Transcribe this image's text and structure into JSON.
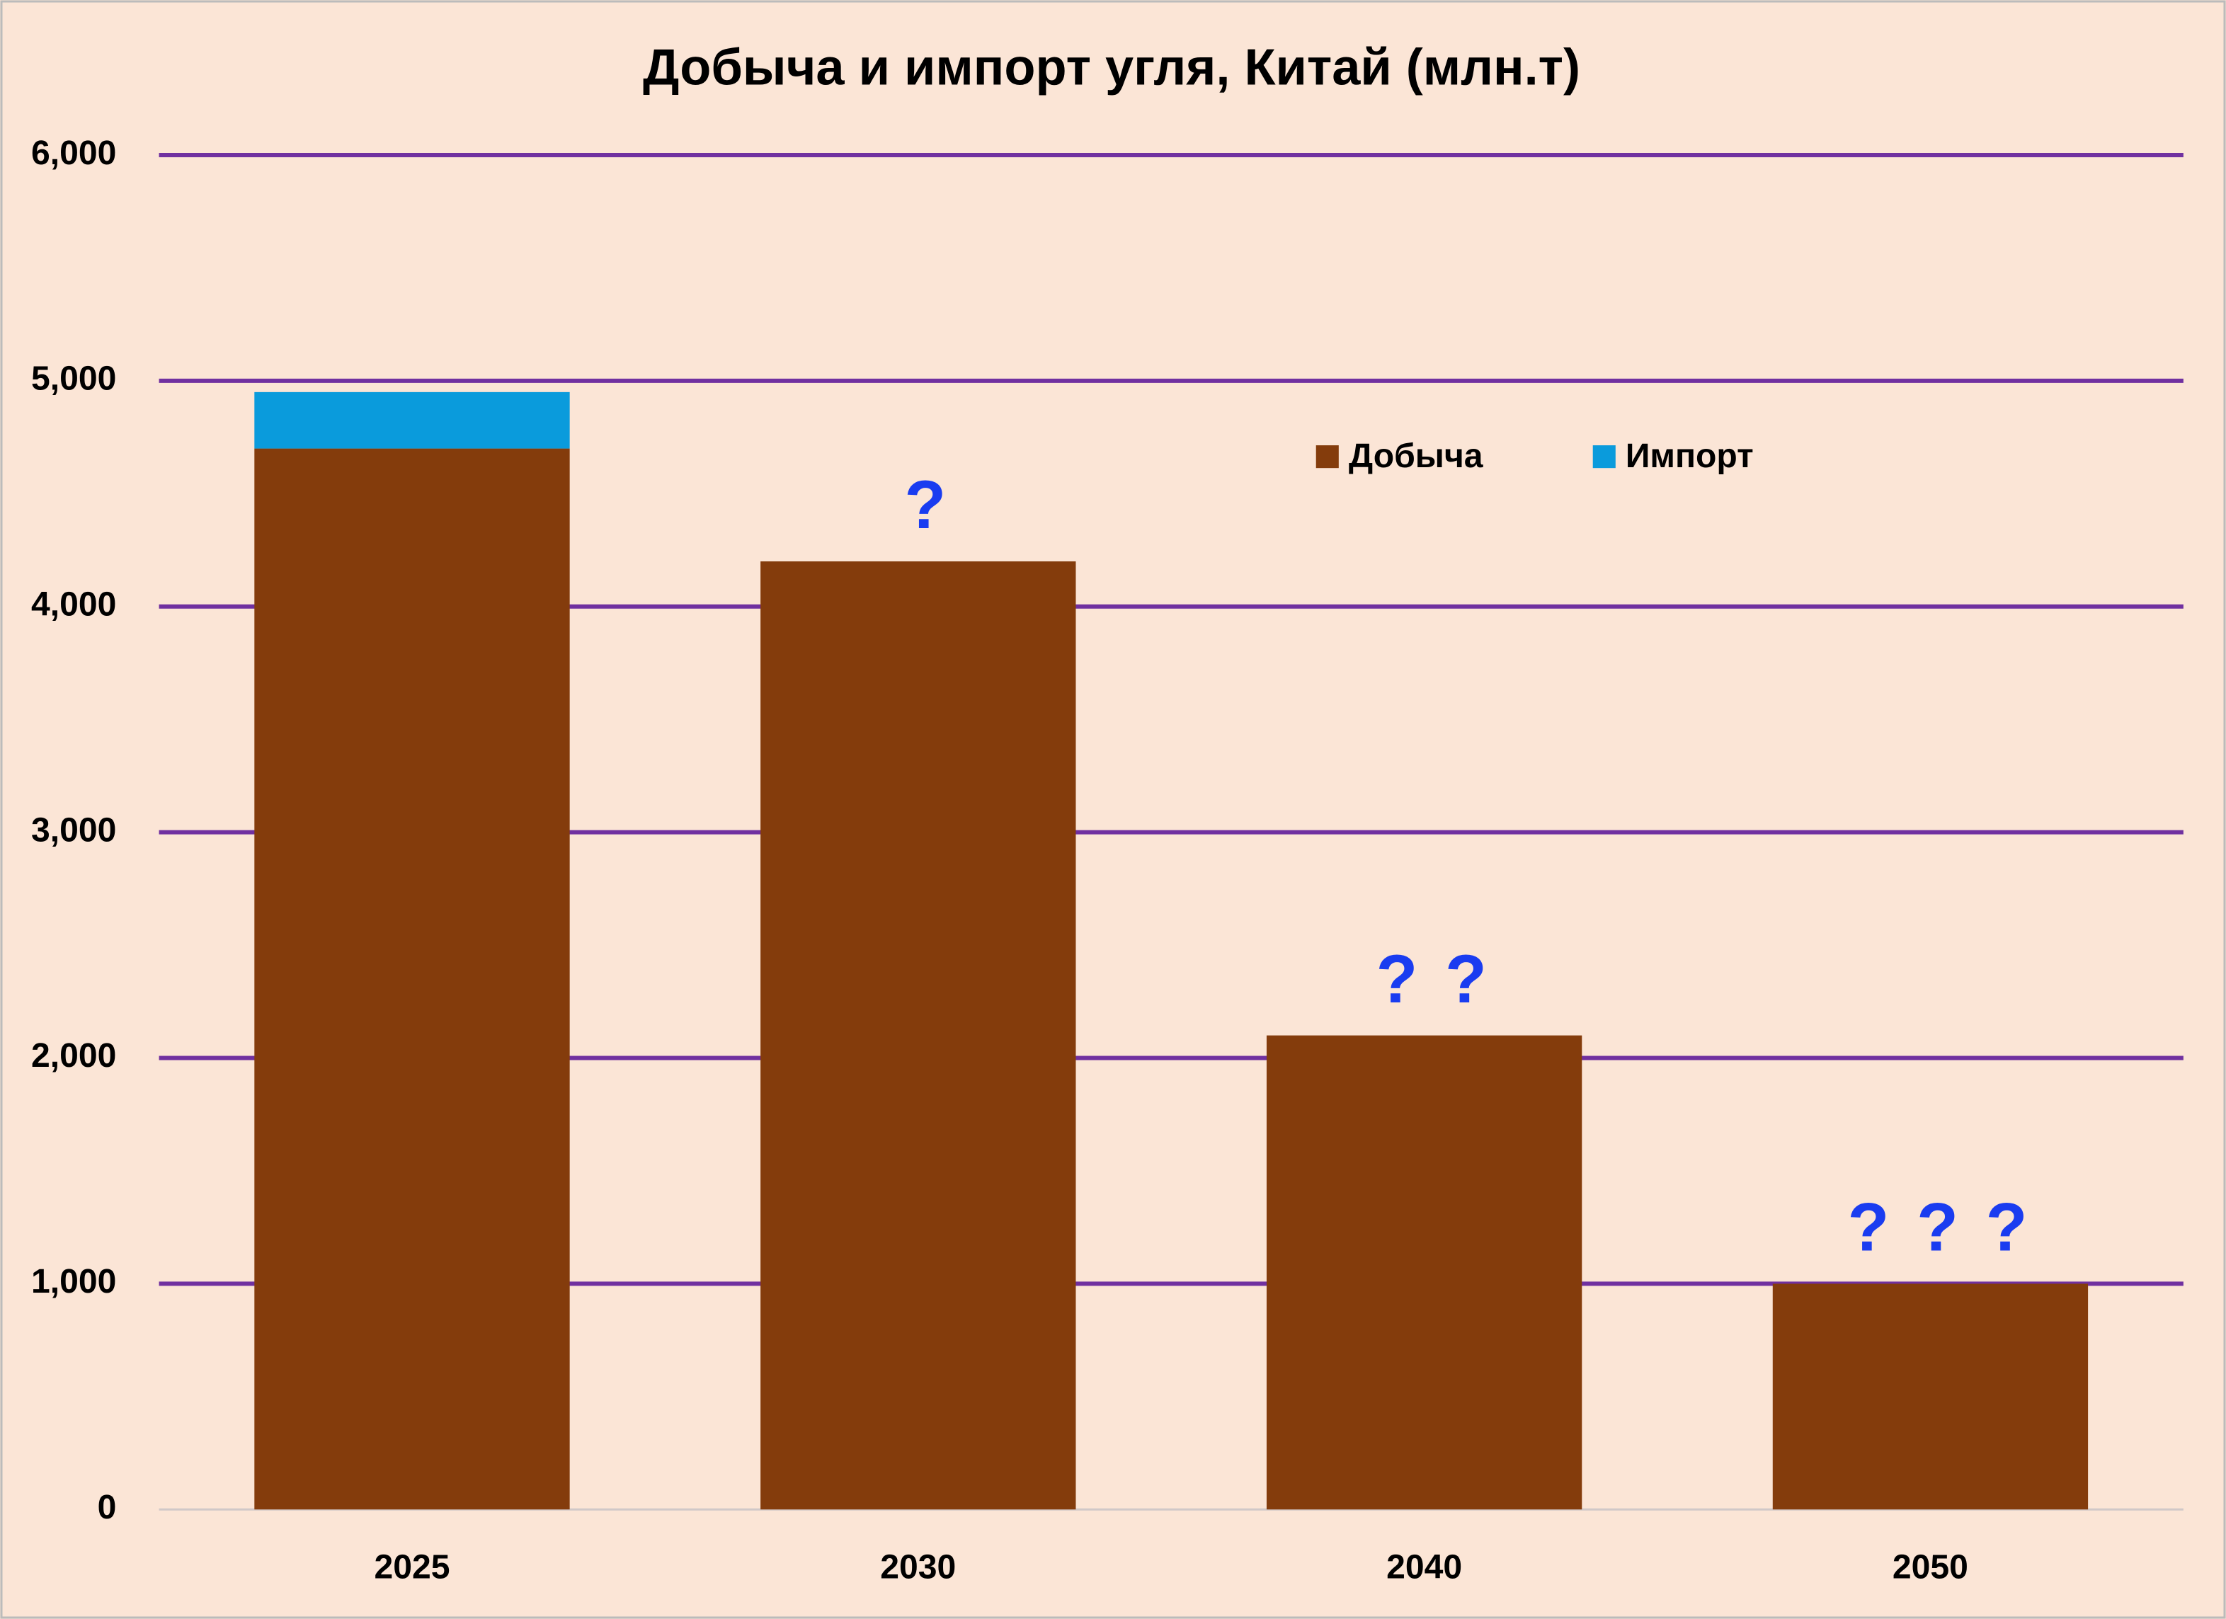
{
  "chart_data": {
    "type": "stacked_bar",
    "title": "Добыча и импорт угля, Китай (млн.т)",
    "categories": [
      "2025",
      "2030",
      "2040",
      "2050"
    ],
    "series": [
      {
        "name": "Добыча",
        "color": "#843c0c",
        "values": [
          4700,
          4200,
          2100,
          1000
        ]
      },
      {
        "name": "Импорт",
        "color": "#0a9bdc",
        "values": [
          250,
          null,
          null,
          null
        ]
      }
    ],
    "annotations": [
      null,
      "?",
      "? ?",
      "? ? ?"
    ],
    "annotation_color": "#1a3cf0",
    "ylim": [
      0,
      6000
    ],
    "yticks": [
      0,
      {
        "value": 1000,
        "label": "1,000"
      },
      {
        "value": 2000,
        "label": "2,000"
      },
      {
        "value": 3000,
        "label": "3,000"
      },
      {
        "value": 4000,
        "label": "4,000"
      },
      {
        "value": 5000,
        "label": "5,000"
      },
      {
        "value": 6000,
        "label": "6,000"
      }
    ],
    "grid": true,
    "grid_color": "#7030a0",
    "legend": "top-right"
  }
}
